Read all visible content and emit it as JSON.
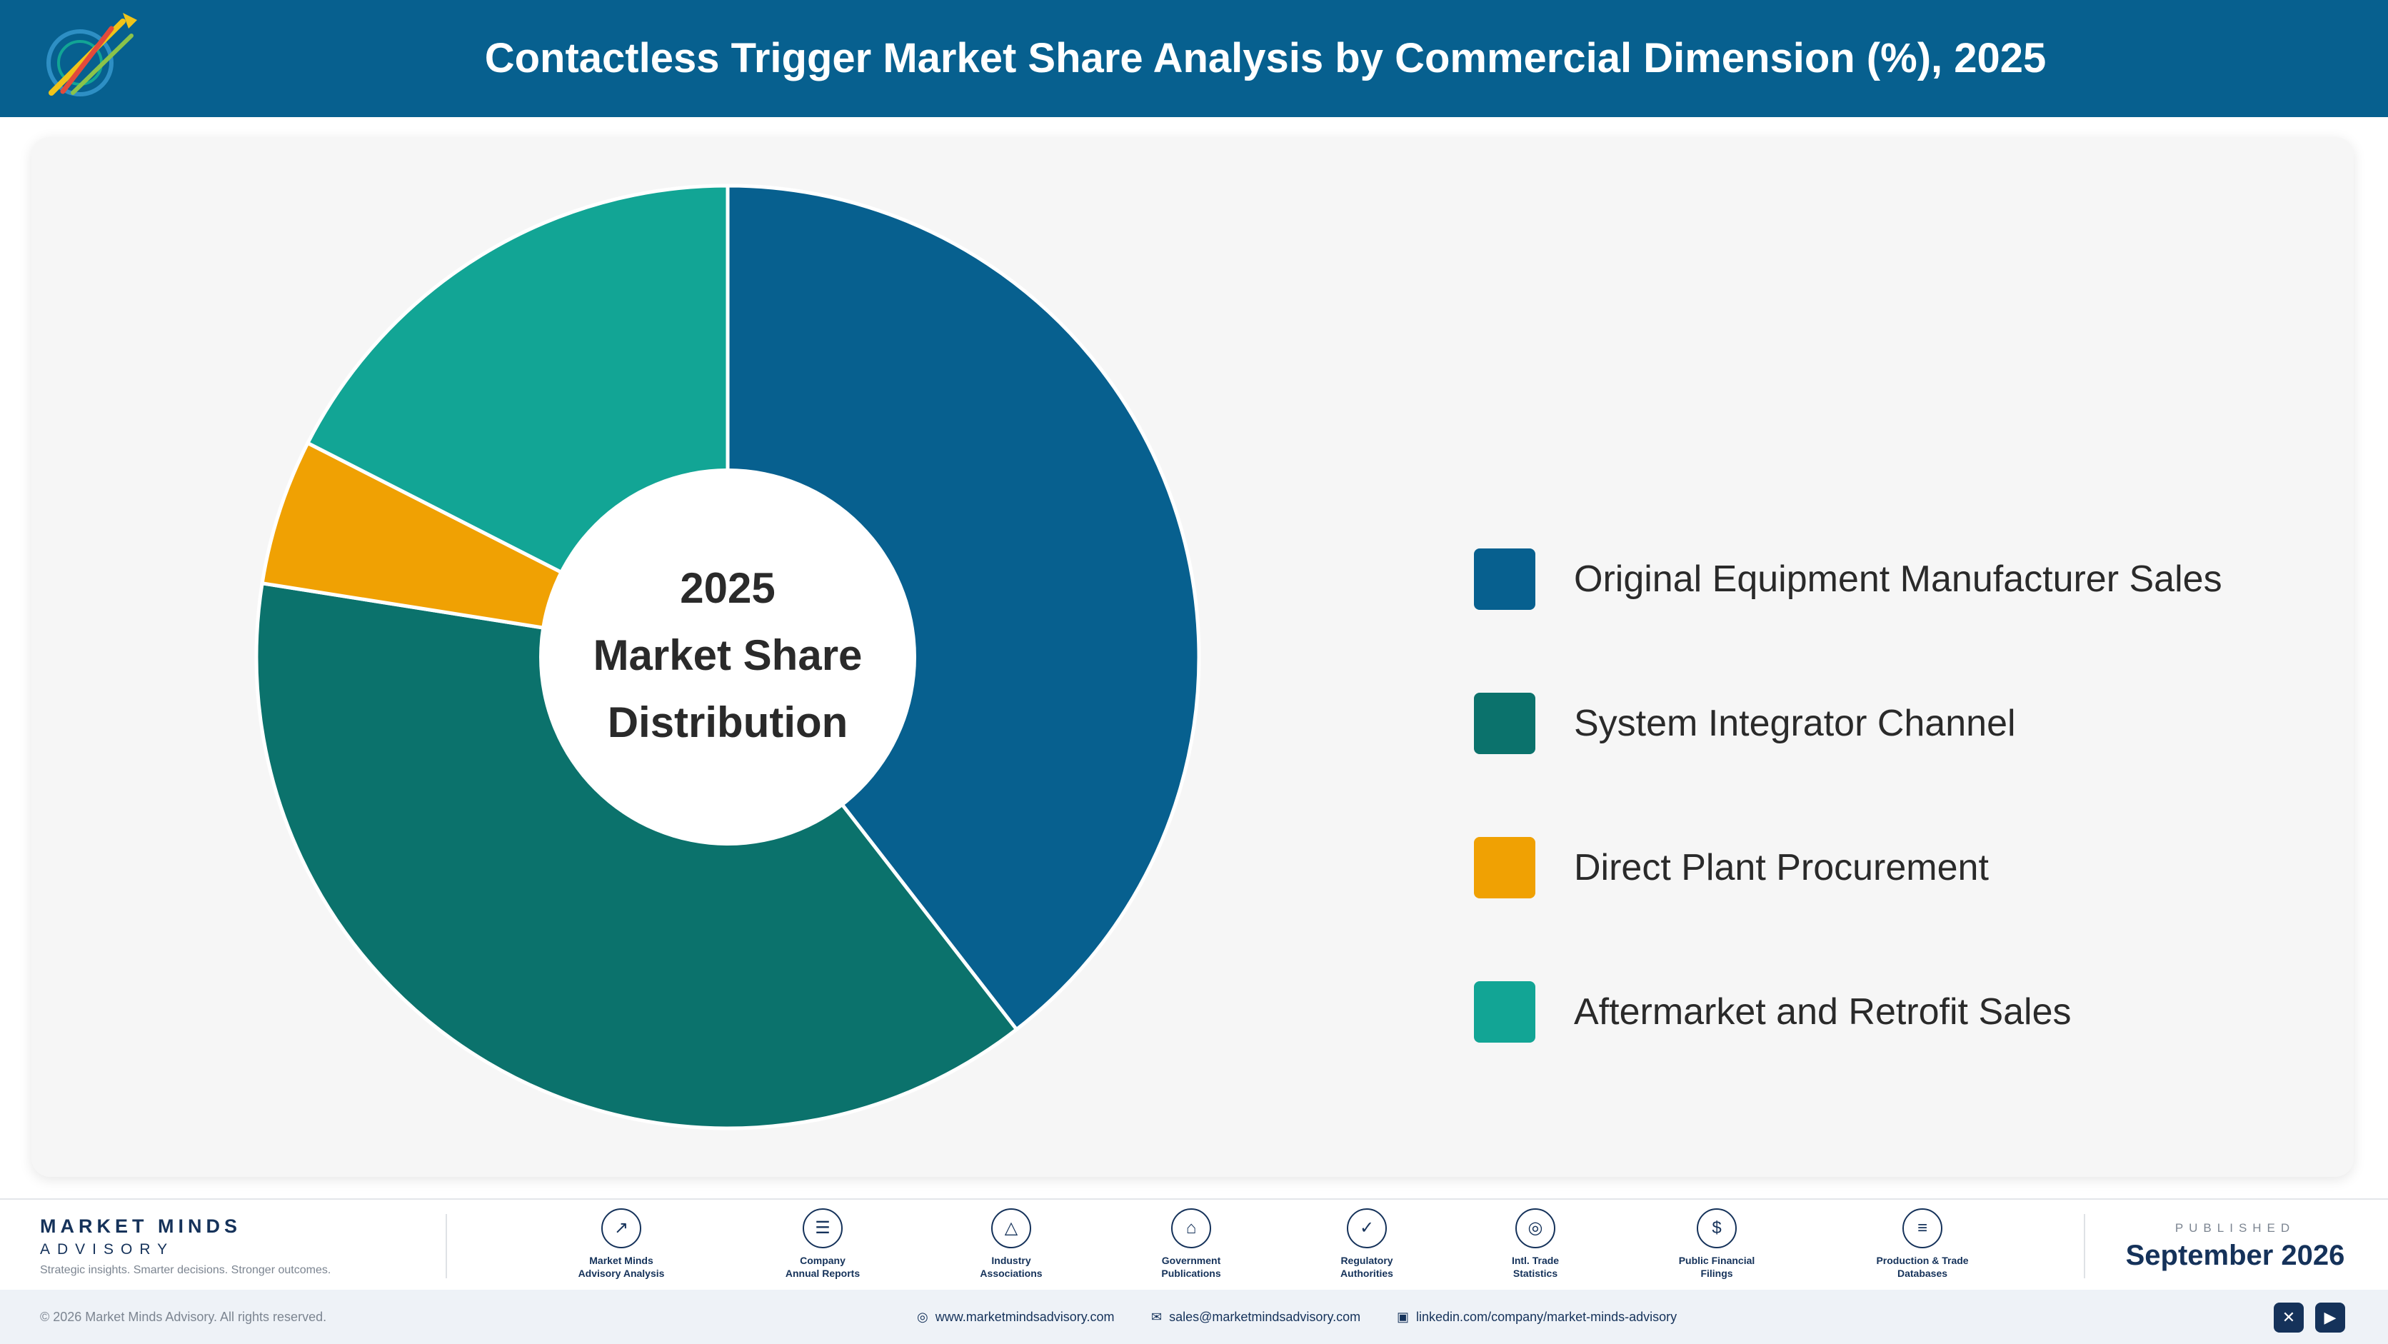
{
  "header": {
    "title": "Contactless Trigger Market Share Analysis by Commercial Dimension (%), 2025"
  },
  "chart_data": {
    "type": "pie",
    "title": "Contactless Trigger Market Share Analysis by Commercial Dimension (%), 2025",
    "center_label": [
      "2025",
      "Market Share",
      "Distribution"
    ],
    "categories": [
      "Original Equipment Manufacturer Sales",
      "System Integrator Channel",
      "Direct Plant Procurement",
      "Aftermarket and Retrofit Sales"
    ],
    "values": [
      39.5,
      38.0,
      5.0,
      17.5
    ],
    "colors": [
      "#07608f",
      "#0b726c",
      "#f0a103",
      "#12a595"
    ],
    "legend_position": "right",
    "donut": true
  },
  "footer": {
    "brand_name": "MARKET MINDS",
    "brand_sub": "ADVISORY",
    "tagline": "Strategic insights. Smarter decisions. Stronger outcomes.",
    "sources": [
      {
        "icon": "chart-line-icon",
        "label": "Market Minds\nAdvisory Analysis"
      },
      {
        "icon": "document-icon",
        "label": "Company\nAnnual Reports"
      },
      {
        "icon": "network-icon",
        "label": "Industry\nAssociations"
      },
      {
        "icon": "bank-icon",
        "label": "Government\nPublications"
      },
      {
        "icon": "shield-icon",
        "label": "Regulatory\nAuthorities"
      },
      {
        "icon": "globe-icon",
        "label": "Intl. Trade\nStatistics"
      },
      {
        "icon": "coin-icon",
        "label": "Public Financial\nFilings"
      },
      {
        "icon": "database-icon",
        "label": "Production & Trade\nDatabases"
      }
    ],
    "published_label": "PUBLISHED",
    "published_date": "September 2026"
  },
  "bottom_bar": {
    "copyright": "© 2026 Market Minds Advisory. All rights reserved.",
    "website": "www.marketmindsadvisory.com",
    "email": "sales@marketmindsadvisory.com",
    "linkedin": "linkedin.com/company/market-minds-advisory"
  }
}
